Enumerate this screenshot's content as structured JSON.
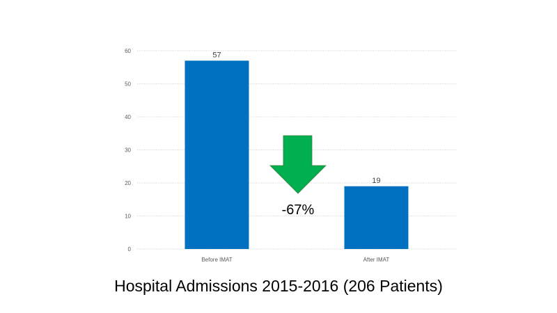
{
  "chart_data": {
    "type": "bar",
    "categories": [
      "Before IMAT",
      "After IMAT"
    ],
    "values": [
      57,
      19
    ],
    "data_labels": [
      "57",
      "19"
    ],
    "title": "Hospital Admissions 2015-2016 (206 Patients)",
    "xlabel": "",
    "ylabel": "",
    "ylim": [
      0,
      60
    ],
    "yticks": [
      0,
      10,
      20,
      30,
      40,
      50,
      60
    ],
    "grid": true,
    "legend": "none",
    "annotation": {
      "text": "-67%",
      "icon": "down-arrow-icon",
      "color": "#00B050"
    },
    "bar_color": "#0070C0",
    "grid_color": "#D9D9D9"
  }
}
